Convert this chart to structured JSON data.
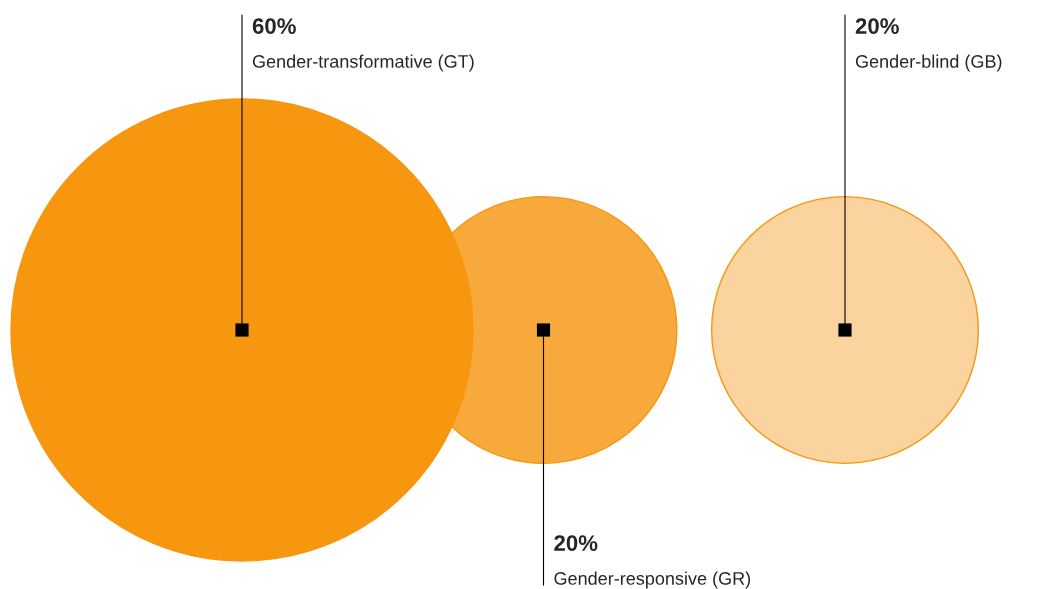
{
  "chart_data": {
    "type": "other",
    "categories": [
      "Gender-transformative (GT)",
      "Gender-responsive (GR)",
      "Gender-blind (GB)"
    ],
    "values": [
      60,
      20,
      20
    ],
    "value_labels": [
      "60%",
      "20%",
      "20%"
    ],
    "colors": [
      "#f7960f",
      "#f7a93c",
      "#fad39f"
    ]
  }
}
